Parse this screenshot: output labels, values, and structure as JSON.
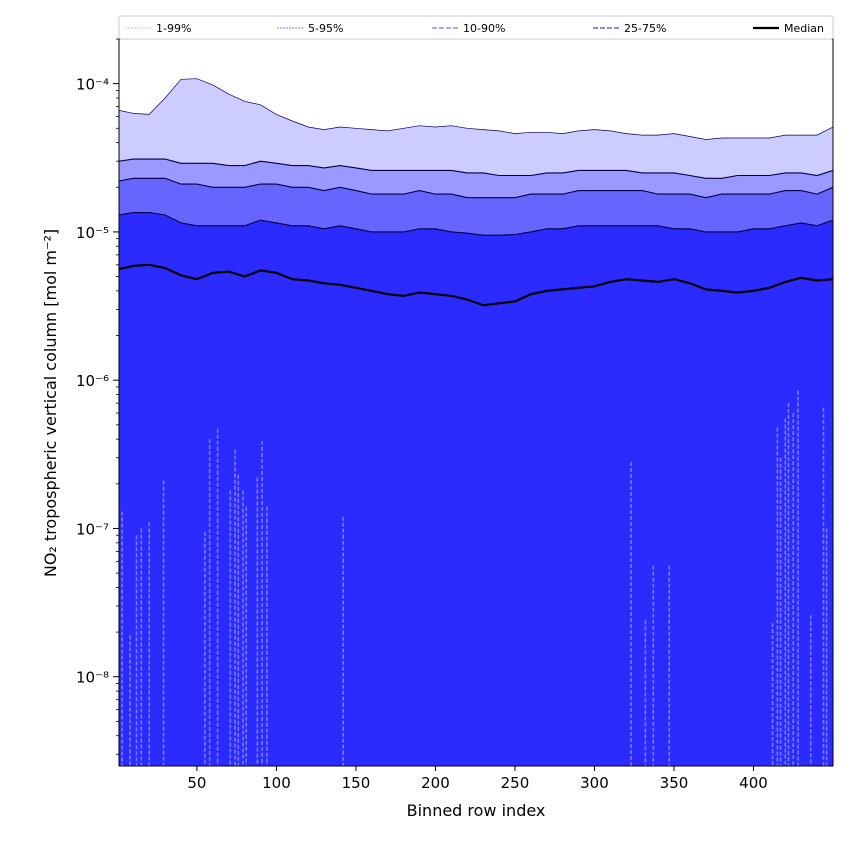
{
  "chart_data": {
    "type": "area",
    "xlabel": "Binned row index",
    "ylabel": "NO₂ tropospheric vertical column [mol m⁻²]",
    "y_scale": "log",
    "xlim": [
      1,
      450
    ],
    "ylim": [
      2.5e-09,
      0.0002
    ],
    "x_ticks": [
      50,
      100,
      150,
      200,
      250,
      300,
      350,
      400
    ],
    "y_ticks": [
      {
        "value": 1e-08,
        "label": "10⁻⁸"
      },
      {
        "value": 1e-07,
        "label": "10⁻⁷"
      },
      {
        "value": 1e-06,
        "label": "10⁻⁶"
      },
      {
        "value": 1e-05,
        "label": "10⁻⁵"
      },
      {
        "value": 0.0001,
        "label": "10⁻⁴"
      }
    ],
    "x": [
      1,
      10,
      20,
      30,
      40,
      50,
      60,
      70,
      80,
      90,
      100,
      110,
      120,
      130,
      140,
      150,
      160,
      170,
      180,
      190,
      200,
      210,
      220,
      230,
      240,
      250,
      260,
      270,
      280,
      290,
      300,
      310,
      320,
      330,
      340,
      350,
      360,
      370,
      380,
      390,
      400,
      410,
      420,
      430,
      440,
      450
    ],
    "series": [
      {
        "name": "1-99%",
        "band": "upper",
        "color": "#ccccff",
        "values": [
          6.6e-05,
          6.3e-05,
          6.2e-05,
          8e-05,
          0.000107,
          0.000108,
          9.8e-05,
          8.5e-05,
          7.6e-05,
          7.2e-05,
          6.2e-05,
          5.6e-05,
          5.1e-05,
          4.9e-05,
          5.1e-05,
          5e-05,
          4.9e-05,
          4.8e-05,
          5e-05,
          5.2e-05,
          5.1e-05,
          5.2e-05,
          5e-05,
          4.9e-05,
          4.8e-05,
          4.6e-05,
          4.7e-05,
          4.7e-05,
          4.6e-05,
          4.8e-05,
          4.9e-05,
          4.8e-05,
          4.6e-05,
          4.5e-05,
          4.5e-05,
          4.6e-05,
          4.4e-05,
          4.2e-05,
          4.3e-05,
          4.3e-05,
          4.3e-05,
          4.3e-05,
          4.5e-05,
          4.5e-05,
          4.5e-05,
          5.1e-05
        ]
      },
      {
        "name": "5-95%",
        "band": "upper",
        "color": "#9999ff",
        "values": [
          3e-05,
          3.1e-05,
          3.1e-05,
          3.1e-05,
          2.9e-05,
          2.9e-05,
          2.9e-05,
          2.8e-05,
          2.8e-05,
          3e-05,
          2.9e-05,
          2.8e-05,
          2.8e-05,
          2.7e-05,
          2.8e-05,
          2.7e-05,
          2.6e-05,
          2.6e-05,
          2.6e-05,
          2.6e-05,
          2.6e-05,
          2.6e-05,
          2.5e-05,
          2.5e-05,
          2.4e-05,
          2.4e-05,
          2.4e-05,
          2.5e-05,
          2.5e-05,
          2.6e-05,
          2.6e-05,
          2.6e-05,
          2.6e-05,
          2.5e-05,
          2.5e-05,
          2.5e-05,
          2.4e-05,
          2.3e-05,
          2.3e-05,
          2.4e-05,
          2.4e-05,
          2.4e-05,
          2.5e-05,
          2.5e-05,
          2.4e-05,
          2.6e-05
        ]
      },
      {
        "name": "10-90%",
        "band": "upper",
        "color": "#6666ff",
        "values": [
          2.2e-05,
          2.3e-05,
          2.3e-05,
          2.3e-05,
          2.1e-05,
          2.1e-05,
          2e-05,
          2e-05,
          2e-05,
          2.1e-05,
          2.1e-05,
          2e-05,
          2e-05,
          1.9e-05,
          2e-05,
          1.9e-05,
          1.8e-05,
          1.8e-05,
          1.8e-05,
          1.9e-05,
          1.8e-05,
          1.8e-05,
          1.7e-05,
          1.7e-05,
          1.7e-05,
          1.7e-05,
          1.8e-05,
          1.8e-05,
          1.8e-05,
          1.9e-05,
          1.9e-05,
          1.9e-05,
          1.9e-05,
          1.9e-05,
          1.8e-05,
          1.8e-05,
          1.8e-05,
          1.7e-05,
          1.8e-05,
          1.8e-05,
          1.8e-05,
          1.8e-05,
          1.9e-05,
          1.9e-05,
          1.8e-05,
          2e-05
        ]
      },
      {
        "name": "25-75%",
        "band": "upper",
        "color": "#3333ff",
        "values": [
          1.3e-05,
          1.35e-05,
          1.35e-05,
          1.3e-05,
          1.15e-05,
          1.1e-05,
          1.1e-05,
          1.1e-05,
          1.1e-05,
          1.2e-05,
          1.15e-05,
          1.1e-05,
          1.1e-05,
          1.05e-05,
          1.1e-05,
          1.05e-05,
          1e-05,
          1e-05,
          1e-05,
          1.05e-05,
          1.05e-05,
          1e-05,
          9.8e-06,
          9.5e-06,
          9.5e-06,
          9.6e-06,
          1e-05,
          1.05e-05,
          1.05e-05,
          1.1e-05,
          1.1e-05,
          1.1e-05,
          1.1e-05,
          1.1e-05,
          1.1e-05,
          1.05e-05,
          1.05e-05,
          1e-05,
          1e-05,
          1e-05,
          1.05e-05,
          1.05e-05,
          1.1e-05,
          1.15e-05,
          1.1e-05,
          1.2e-05
        ]
      },
      {
        "name": "Median",
        "color": "#000000",
        "values": [
          5.6e-06,
          5.9e-06,
          6e-06,
          5.7e-06,
          5.1e-06,
          4.8e-06,
          5.3e-06,
          5.4e-06,
          5e-06,
          5.5e-06,
          5.3e-06,
          4.8e-06,
          4.7e-06,
          4.5e-06,
          4.4e-06,
          4.2e-06,
          4e-06,
          3.8e-06,
          3.7e-06,
          3.9e-06,
          3.8e-06,
          3.7e-06,
          3.5e-06,
          3.2e-06,
          3.3e-06,
          3.4e-06,
          3.8e-06,
          4e-06,
          4.1e-06,
          4.2e-06,
          4.3e-06,
          4.6e-06,
          4.8e-06,
          4.7e-06,
          4.6e-06,
          4.8e-06,
          4.5e-06,
          4.1e-06,
          4e-06,
          3.9e-06,
          4e-06,
          4.2e-06,
          4.6e-06,
          4.9e-06,
          4.7e-06,
          4.8e-06
        ]
      }
    ],
    "lower_dips": [
      {
        "x": 3,
        "y": 1.3e-07
      },
      {
        "x": 8,
        "y": 1.9e-08
      },
      {
        "x": 12,
        "y": 9e-08
      },
      {
        "x": 15,
        "y": 1e-07
      },
      {
        "x": 20,
        "y": 1.1e-07
      },
      {
        "x": 29,
        "y": 2.1e-07
      },
      {
        "x": 55,
        "y": 9.5e-08
      },
      {
        "x": 58,
        "y": 4e-07
      },
      {
        "x": 63,
        "y": 4.7e-07
      },
      {
        "x": 71,
        "y": 1.8e-07
      },
      {
        "x": 74,
        "y": 3.4e-07
      },
      {
        "x": 76,
        "y": 2.3e-07
      },
      {
        "x": 79,
        "y": 1.8e-07
      },
      {
        "x": 81,
        "y": 1.4e-07
      },
      {
        "x": 88,
        "y": 2.2e-07
      },
      {
        "x": 91,
        "y": 3.9e-07
      },
      {
        "x": 94,
        "y": 1.4e-07
      },
      {
        "x": 142,
        "y": 1.2e-07
      },
      {
        "x": 323,
        "y": 2.8e-07
      },
      {
        "x": 332,
        "y": 2.4e-08
      },
      {
        "x": 337,
        "y": 5.6e-08
      },
      {
        "x": 347,
        "y": 5.6e-08
      },
      {
        "x": 412,
        "y": 2.3e-08
      },
      {
        "x": 415,
        "y": 4.8e-07
      },
      {
        "x": 417,
        "y": 3e-07
      },
      {
        "x": 420,
        "y": 5.5e-07
      },
      {
        "x": 422,
        "y": 7e-07
      },
      {
        "x": 425,
        "y": 6e-07
      },
      {
        "x": 428,
        "y": 8.5e-07
      },
      {
        "x": 436,
        "y": 2.6e-08
      },
      {
        "x": 444,
        "y": 6.5e-07
      },
      {
        "x": 446,
        "y": 1e-07
      }
    ],
    "band_fill_color": "#2b2bff",
    "legend": {
      "placement": "top",
      "entries": [
        {
          "label": "1-99%",
          "color": "#ccccff",
          "style": "thin"
        },
        {
          "label": "5-95%",
          "color": "#9999ff",
          "style": "thin"
        },
        {
          "label": "10-90%",
          "color": "#7777ff",
          "style": "dashed"
        },
        {
          "label": "25-75%",
          "color": "#4444ee",
          "style": "dashed"
        },
        {
          "label": "Median",
          "color": "#000000",
          "style": "solid"
        }
      ]
    },
    "grid": false
  }
}
